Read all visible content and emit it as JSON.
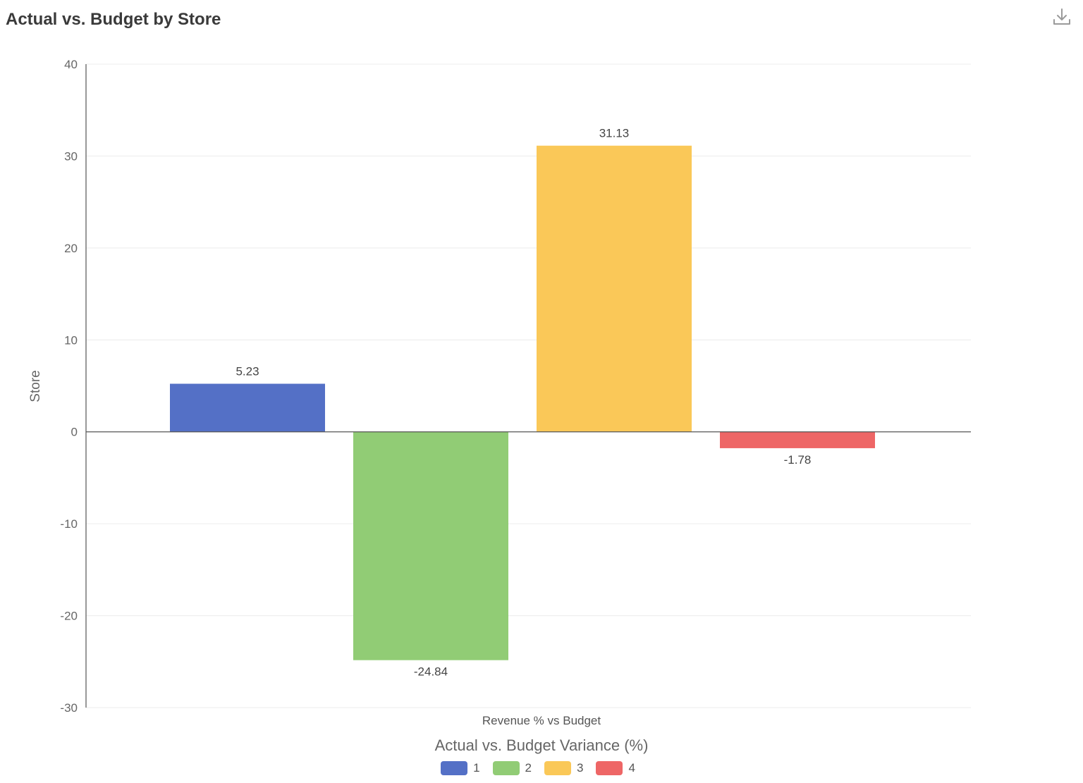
{
  "card": {
    "title": "Actual vs. Budget by Store",
    "download_icon": "download-icon"
  },
  "chart_data": {
    "type": "bar",
    "title": "Actual vs. Budget by Store",
    "categories": [
      "Revenue % vs Budget"
    ],
    "xlabel": "Revenue % vs Budget",
    "ylabel": "Store",
    "ylim": [
      -30,
      40
    ],
    "yticks": [
      40,
      30,
      20,
      10,
      0,
      -10,
      -20,
      -30
    ],
    "grid": true,
    "legend_title": "Actual vs. Budget Variance (%)",
    "legend_position": "bottom-center",
    "series": [
      {
        "name": "1",
        "values": [
          5.23
        ],
        "label": "5.23",
        "color": "#5470c6"
      },
      {
        "name": "2",
        "values": [
          -24.84
        ],
        "label": "-24.84",
        "color": "#91cc75"
      },
      {
        "name": "3",
        "values": [
          31.13
        ],
        "label": "31.13",
        "color": "#fac858"
      },
      {
        "name": "4",
        "values": [
          -1.78
        ],
        "label": "-1.78",
        "color": "#ee6666"
      }
    ]
  }
}
